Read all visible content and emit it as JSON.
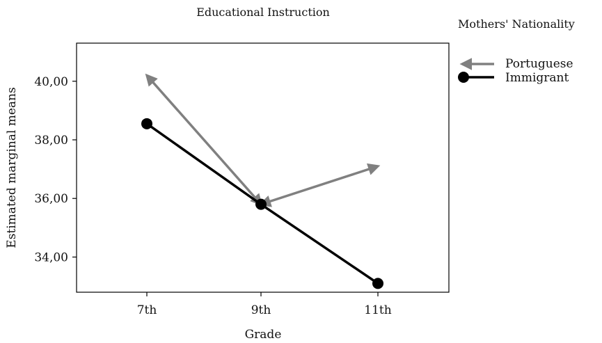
{
  "chart_data": {
    "type": "line",
    "title": "Educational Instruction",
    "xlabel": "Grade",
    "ylabel": "Estimated marginal means",
    "categories": [
      "7th",
      "9th",
      "11th"
    ],
    "yticks": [
      "34,00",
      "36,00",
      "38,00",
      "40,00"
    ],
    "ytick_values": [
      34,
      36,
      38,
      40
    ],
    "ylim": [
      32.8,
      41.3
    ],
    "legend_title": "Mothers' Nationality",
    "legend_position": "right",
    "grid": false,
    "series": [
      {
        "name": "Portuguese",
        "values": [
          40.2,
          35.8,
          37.1
        ],
        "color": "#808080",
        "marker": "arrow"
      },
      {
        "name": "Immigrant",
        "values": [
          38.55,
          35.8,
          33.1
        ],
        "color": "#000000",
        "marker": "circle"
      }
    ]
  }
}
